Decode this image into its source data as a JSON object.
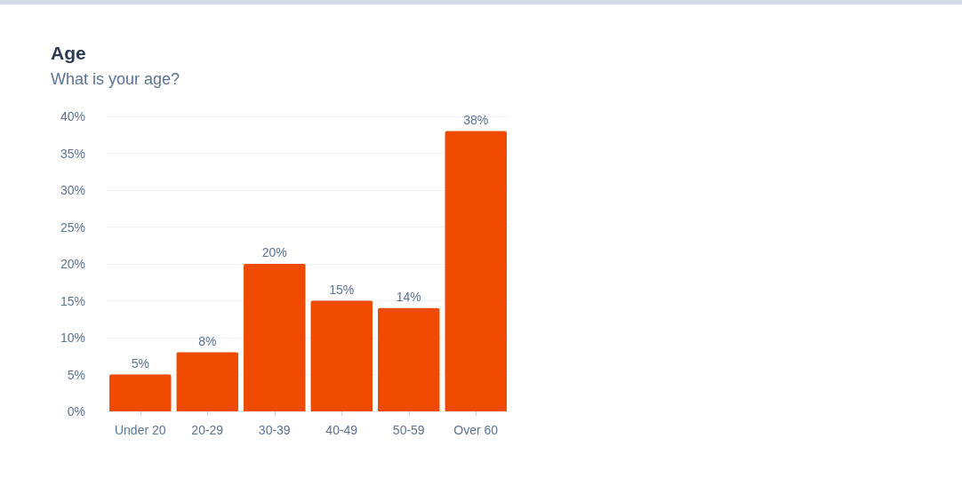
{
  "chart_data": {
    "type": "bar",
    "title": "Age",
    "subtitle": "What is your age?",
    "categories": [
      "Under 20",
      "20-29",
      "30-39",
      "40-49",
      "50-59",
      "Over 60"
    ],
    "values": [
      5,
      8,
      20,
      15,
      14,
      38
    ],
    "value_labels": [
      "5%",
      "8%",
      "20%",
      "15%",
      "14%",
      "38%"
    ],
    "color": "#f04a00",
    "ylim": [
      0,
      40
    ],
    "yticks": [
      {
        "value": 0,
        "label": "0%"
      },
      {
        "value": 5,
        "label": "5%"
      },
      {
        "value": 10,
        "label": "10%"
      },
      {
        "value": 15,
        "label": "15%"
      },
      {
        "value": 20,
        "label": "20%"
      },
      {
        "value": 25,
        "label": "25%"
      },
      {
        "value": 30,
        "label": "30%"
      },
      {
        "value": 35,
        "label": "35%"
      },
      {
        "value": 40,
        "label": "40%"
      }
    ],
    "grid": "y"
  }
}
